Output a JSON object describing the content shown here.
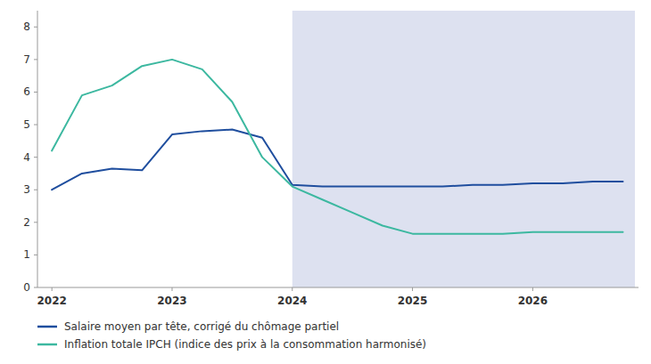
{
  "chart_data": {
    "type": "line",
    "x": [
      2022.0,
      2022.25,
      2022.5,
      2022.75,
      2023.0,
      2023.25,
      2023.5,
      2023.75,
      2024.0,
      2024.25,
      2024.5,
      2024.75,
      2025.0,
      2025.25,
      2025.5,
      2025.75,
      2026.0,
      2026.25,
      2026.5,
      2026.75
    ],
    "series": [
      {
        "name": "Salaire moyen par tête, corrigé du chômage partiel",
        "color": "#1f4e9e",
        "values": [
          3.0,
          3.5,
          3.65,
          3.6,
          4.7,
          4.8,
          4.85,
          4.6,
          3.15,
          3.1,
          3.1,
          3.1,
          3.1,
          3.1,
          3.15,
          3.15,
          3.2,
          3.2,
          3.25,
          3.25
        ]
      },
      {
        "name": "Inflation totale IPCH (indice des prix à la consommation harmonisé)",
        "color": "#3cb8a0",
        "values": [
          4.2,
          5.9,
          6.2,
          6.8,
          7.0,
          6.7,
          5.7,
          4.0,
          3.1,
          2.7,
          2.3,
          1.9,
          1.65,
          1.65,
          1.65,
          1.65,
          1.7,
          1.7,
          1.7,
          1.7
        ]
      }
    ],
    "span": {
      "x": [
        2024.0,
        2026.85
      ],
      "color": "#dde1f0"
    },
    "xlim": [
      2021.88,
      2026.88
    ],
    "xticks": [
      2022,
      2023,
      2024,
      2025,
      2026
    ],
    "ylim": [
      0,
      8.5
    ],
    "yticks": [
      0,
      1,
      2,
      3,
      4,
      5,
      6,
      7,
      8
    ],
    "grid": false,
    "legend": "bottom"
  }
}
